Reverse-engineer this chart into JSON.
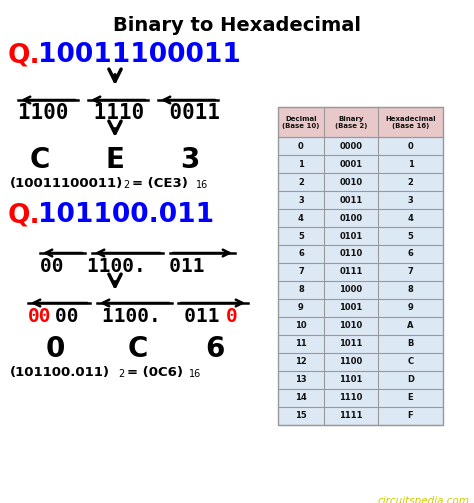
{
  "title": "Binary to Hexadecimal",
  "bg_color": "#ffffff",
  "title_color": "#000000",
  "red_color": "#ff0000",
  "blue_color": "#0000ff",
  "black_color": "#000000",
  "table_header_bg": "#e8c8c8",
  "table_row_bg": "#dce8f4",
  "table_border": "#999999",
  "watermark": "circuitspedia.com",
  "watermark_color": "#cccc00",
  "table_headers": [
    "Decimal\n(Base 10)",
    "Binary\n(Base 2)",
    "Hexadecimal\n(Base 16)"
  ],
  "table_rows": [
    [
      "0",
      "0000",
      "0"
    ],
    [
      "1",
      "0001",
      "1"
    ],
    [
      "2",
      "0010",
      "2"
    ],
    [
      "3",
      "0011",
      "3"
    ],
    [
      "4",
      "0100",
      "4"
    ],
    [
      "5",
      "0101",
      "5"
    ],
    [
      "6",
      "0110",
      "6"
    ],
    [
      "7",
      "0111",
      "7"
    ],
    [
      "8",
      "1000",
      "8"
    ],
    [
      "9",
      "1001",
      "9"
    ],
    [
      "10",
      "1010",
      "A"
    ],
    [
      "11",
      "1011",
      "B"
    ],
    [
      "12",
      "1100",
      "C"
    ],
    [
      "13",
      "1101",
      "D"
    ],
    [
      "14",
      "1110",
      "E"
    ],
    [
      "15",
      "1111",
      "F"
    ]
  ],
  "figsize": [
    4.74,
    5.03
  ],
  "dpi": 100
}
